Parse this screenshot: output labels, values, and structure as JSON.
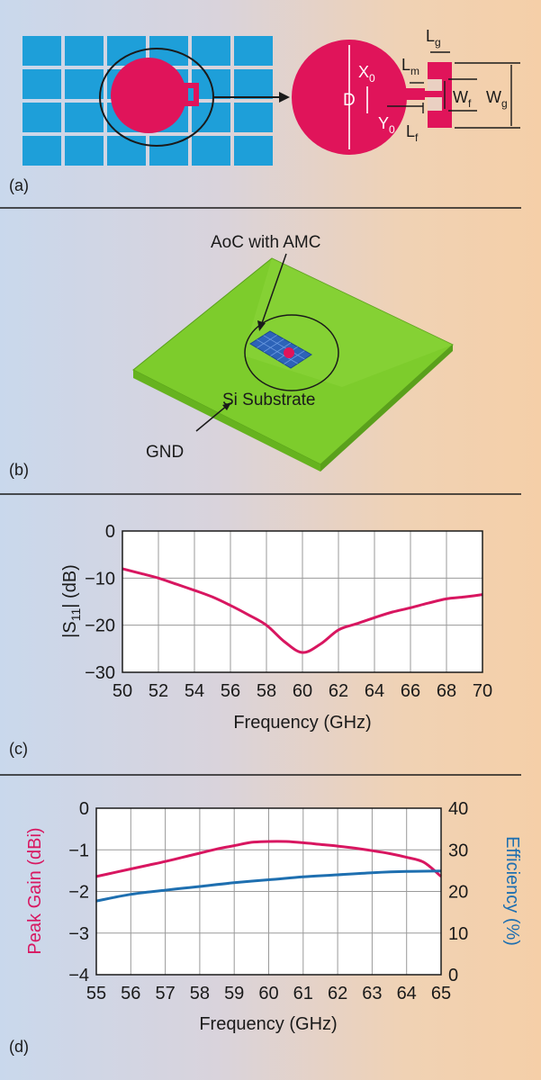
{
  "colors": {
    "cell": "#1e9fd9",
    "patch": "#e0145a",
    "gain": "#d81660",
    "efficiency": "#1e6fb0",
    "substrate": "#7dcc2c",
    "substrate_edge": "#5aa01c"
  },
  "panel_a": {
    "panel_label": "(a)",
    "labels": {
      "lg": "Lg",
      "x0": "X0",
      "lm": "Lm",
      "d": "D",
      "wf": "Wf",
      "wg": "Wg",
      "y0": "Y0",
      "lf": "Lf"
    }
  },
  "panel_b": {
    "panel_label": "(b)",
    "callout_aoc": "AoC with AMC",
    "callout_substrate": "Si Substrate",
    "callout_gnd": "GND"
  },
  "chart_data": [
    {
      "panel_label": "(c)",
      "type": "line",
      "xlabel": "Frequency (GHz)",
      "ylabel": "|S11| (dB)",
      "xlim": [
        50,
        70
      ],
      "ylim": [
        -30,
        0
      ],
      "x_ticks": [
        "50",
        "52",
        "54",
        "56",
        "58",
        "60",
        "62",
        "64",
        "66",
        "68",
        "70"
      ],
      "y_ticks": [
        "0",
        "−10",
        "−20",
        "−30"
      ],
      "grid": true,
      "series": [
        {
          "color": "#d81660",
          "x": [
            50,
            51,
            52,
            53,
            54,
            55,
            56,
            57,
            58,
            59,
            60,
            61,
            62,
            63,
            64,
            65,
            66,
            67,
            68,
            69,
            70
          ],
          "y": [
            -8,
            -9,
            -10,
            -11.3,
            -12.6,
            -14,
            -15.8,
            -17.8,
            -20,
            -23.5,
            -25.8,
            -24,
            -21,
            -19.7,
            -18.4,
            -17.2,
            -16.3,
            -15.3,
            -14.4,
            -14,
            -13.5
          ]
        }
      ]
    },
    {
      "panel_label": "(d)",
      "type": "line",
      "xlabel": "Frequency (GHz)",
      "ylabel": "Peak Gain (dBi)",
      "y2label": "Efficiency (%)",
      "xlim": [
        55,
        65
      ],
      "ylim": [
        -4,
        0
      ],
      "y2lim": [
        0,
        40
      ],
      "x_ticks": [
        "55",
        "56",
        "57",
        "58",
        "59",
        "60",
        "61",
        "62",
        "63",
        "64",
        "65"
      ],
      "y_ticks": [
        "0",
        "−1",
        "−2",
        "−3",
        "−4"
      ],
      "y2_ticks": [
        "40",
        "30",
        "20",
        "10",
        "0"
      ],
      "grid": true,
      "series": [
        {
          "axis": "left",
          "color": "#d81660",
          "x": [
            55,
            55.5,
            56,
            56.5,
            57,
            57.5,
            58,
            58.5,
            59,
            59.5,
            60,
            60.5,
            61,
            61.5,
            62,
            62.5,
            63,
            63.5,
            64,
            64.5,
            65
          ],
          "y": [
            -1.64,
            -1.55,
            -1.46,
            -1.37,
            -1.28,
            -1.18,
            -1.08,
            -0.98,
            -0.9,
            -0.82,
            -0.8,
            -0.8,
            -0.83,
            -0.87,
            -0.91,
            -0.96,
            -1.02,
            -1.09,
            -1.18,
            -1.3,
            -1.64
          ]
        },
        {
          "axis": "right",
          "color": "#1e6fb0",
          "x": [
            55,
            56,
            57,
            58,
            59,
            60,
            61,
            62,
            63,
            64,
            65
          ],
          "y": [
            17.7,
            19.3,
            20.3,
            21.2,
            22.1,
            22.8,
            23.5,
            24.0,
            24.5,
            24.8,
            24.9
          ]
        }
      ]
    }
  ]
}
